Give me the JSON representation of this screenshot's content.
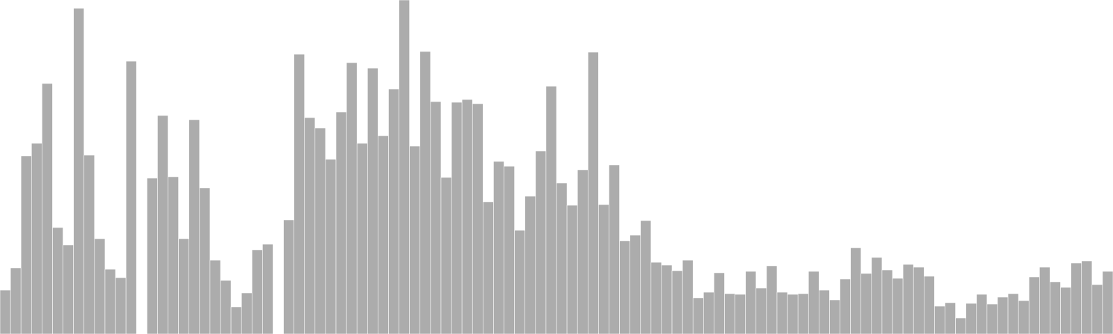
{
  "chart_data": {
    "type": "bar",
    "title": "",
    "xlabel": "",
    "ylabel": "",
    "axes_visible": false,
    "grid": false,
    "legend": "none",
    "bar_color": "#acacac",
    "background": "#ffffff",
    "ylim": [
      0,
      480
    ],
    "values": [
      63,
      95,
      256,
      274,
      360,
      153,
      128,
      468,
      257,
      137,
      93,
      81,
      392,
      0,
      224,
      314,
      226,
      137,
      308,
      210,
      106,
      77,
      39,
      59,
      121,
      129,
      0,
      164,
      402,
      311,
      296,
      251,
      319,
      390,
      274,
      382,
      285,
      352,
      480,
      270,
      406,
      334,
      225,
      333,
      337,
      331,
      190,
      248,
      241,
      149,
      198,
      263,
      356,
      217,
      185,
      236,
      405,
      186,
      243,
      134,
      142,
      163,
      103,
      99,
      91,
      106,
      52,
      60,
      88,
      58,
      57,
      90,
      66,
      98,
      60,
      57,
      58,
      90,
      63,
      49,
      79,
      124,
      87,
      110,
      92,
      80,
      100,
      96,
      83,
      40,
      45,
      23,
      44,
      57,
      43,
      53,
      58,
      48,
      82,
      96,
      75,
      67,
      102,
      105,
      71,
      90
    ]
  }
}
